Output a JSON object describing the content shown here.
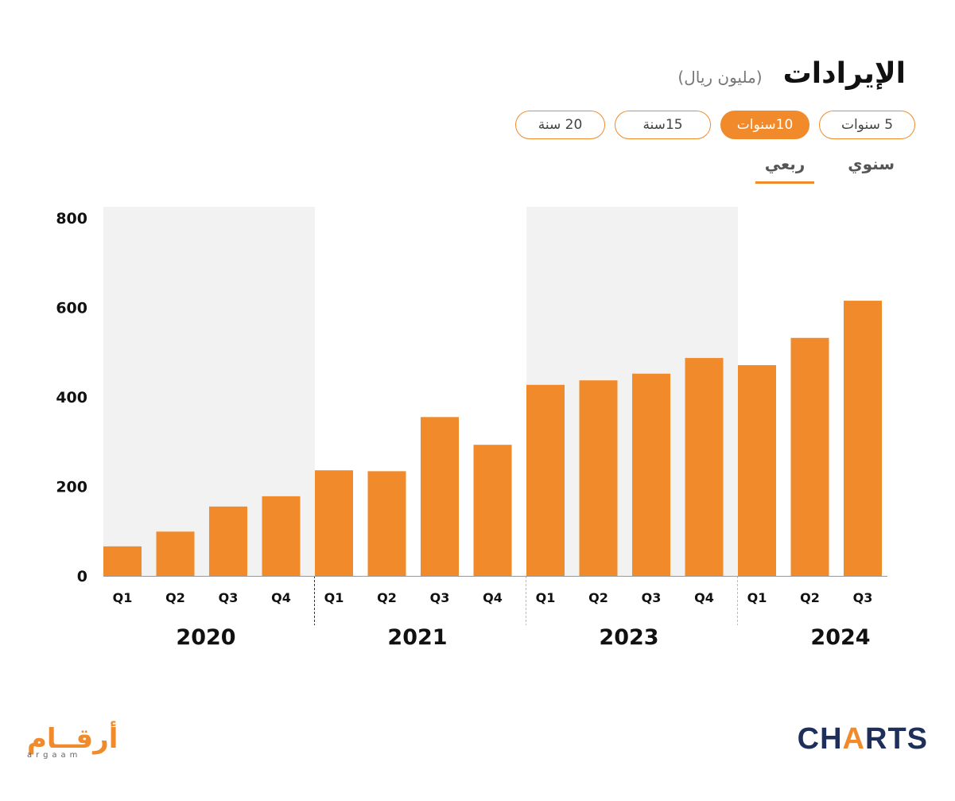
{
  "header": {
    "title": "الإيرادات",
    "unit": "(مليون ريال)"
  },
  "range_buttons": [
    {
      "label": "5 سنوات",
      "active": false
    },
    {
      "label": "10سنوات",
      "active": true
    },
    {
      "label": "15سنة",
      "active": false
    },
    {
      "label": "20 سنة",
      "active": false
    }
  ],
  "tabs": [
    {
      "label": "سنوي",
      "active": false
    },
    {
      "label": "ربعي",
      "active": true
    }
  ],
  "logos": {
    "argaam_ar": "أرقــام",
    "argaam_en": "argaam",
    "charts_pre": "CH",
    "charts_mark": "A",
    "charts_post": "RTS"
  },
  "colors": {
    "bar": "#f08a2b",
    "band": "#f2f2f2",
    "accent": "#f08a2b",
    "brand_dark": "#1d2f5a"
  },
  "chart_data": {
    "type": "bar",
    "ylim": [
      0,
      800
    ],
    "yticks": [
      0,
      200,
      400,
      600,
      800
    ],
    "groups": [
      {
        "year": "2020",
        "quarters": [
          "Q1",
          "Q2",
          "Q3",
          "Q4"
        ],
        "values": [
          66,
          99,
          155,
          178
        ],
        "shaded": true
      },
      {
        "year": "2021",
        "quarters": [
          "Q1",
          "Q2",
          "Q3",
          "Q4"
        ],
        "values": [
          236,
          234,
          355,
          293
        ],
        "shaded": false
      },
      {
        "year": "2023",
        "quarters": [
          "Q1",
          "Q2",
          "Q3",
          "Q4"
        ],
        "values": [
          427,
          437,
          452,
          487
        ],
        "shaded": true
      },
      {
        "year": "2024",
        "quarters": [
          "Q1",
          "Q2",
          "Q3"
        ],
        "values": [
          471,
          532,
          615
        ],
        "shaded": false
      }
    ],
    "grid": false
  }
}
